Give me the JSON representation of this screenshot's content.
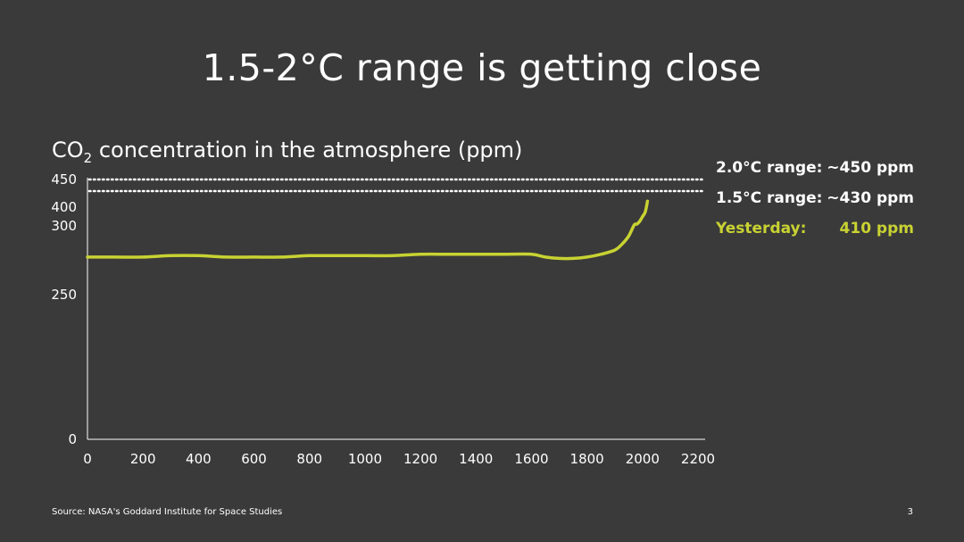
{
  "slide": {
    "title": "1.5-2°C range is getting close",
    "chart_title_prefix": "CO",
    "chart_title_sub": "2",
    "chart_title_suffix": " concentration in the atmosphere (ppm)",
    "source": "Source: NASA's Goddard Institute for Space Studies",
    "page_number": "3"
  },
  "legend": [
    {
      "label": "2.0°C range:",
      "value": "~450 ppm",
      "highlight": false
    },
    {
      "label": "1.5°C range:",
      "value": "~430 ppm",
      "highlight": false
    },
    {
      "label": "Yesterday:",
      "value": "410 ppm",
      "highlight": true
    }
  ],
  "chart_data": {
    "type": "line",
    "title": "",
    "xlabel": "",
    "ylabel": "",
    "x_ticks": [
      0,
      200,
      400,
      600,
      800,
      1000,
      1200,
      1400,
      1600,
      1800,
      2000,
      2200
    ],
    "xlim": [
      0,
      2200
    ],
    "y_ticks": [
      0,
      250,
      300,
      400,
      450
    ],
    "y_scale": "broken: linear 0-250, compressed 250-450",
    "grid": false,
    "line_color": "#c8d232",
    "reference_lines": [
      {
        "value": 450,
        "label": "2.0°C range",
        "style": "dotted",
        "color": "#ffffff"
      },
      {
        "value": 430,
        "label": "1.5°C range",
        "style": "dotted",
        "color": "#ffffff"
      }
    ],
    "series": [
      {
        "x": [
          0,
          100,
          200,
          300,
          400,
          500,
          600,
          700,
          800,
          900,
          1000,
          1100,
          1200,
          1300,
          1400,
          1500,
          1600,
          1650,
          1700,
          1750,
          1800,
          1850,
          1900,
          1925,
          1950,
          1970,
          1980,
          1990,
          2000,
          2010,
          2018
        ],
        "y": [
          277,
          277,
          277,
          278,
          278,
          277,
          277,
          277,
          278,
          278,
          278,
          278,
          279,
          279,
          279,
          279,
          279,
          277,
          276,
          276,
          277,
          279,
          282,
          286,
          292,
          300,
          305,
          320,
          345,
          370,
          410
        ]
      }
    ]
  }
}
